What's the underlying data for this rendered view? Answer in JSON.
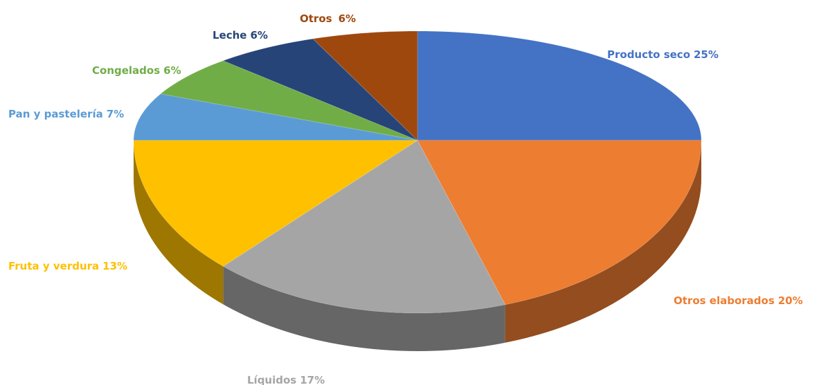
{
  "chart_data": {
    "type": "pie",
    "categories": [
      "Producto seco",
      "Otros elaborados",
      "Líquidos",
      "Fruta y verdura",
      "Pan y pastelería",
      "Congelados",
      "Leche",
      "Otros"
    ],
    "values": [
      25,
      20,
      17,
      13,
      7,
      6,
      6,
      6
    ],
    "value_labels": [
      "25%",
      "20%",
      "17%",
      "13%",
      "7%",
      "6%",
      "6%",
      "6%"
    ],
    "colors": [
      "#4472c4",
      "#ed7d31",
      "#a5a5a5",
      "#ffc000",
      "#5b9bd5",
      "#70ad47",
      "#264478",
      "#9e480e"
    ]
  }
}
